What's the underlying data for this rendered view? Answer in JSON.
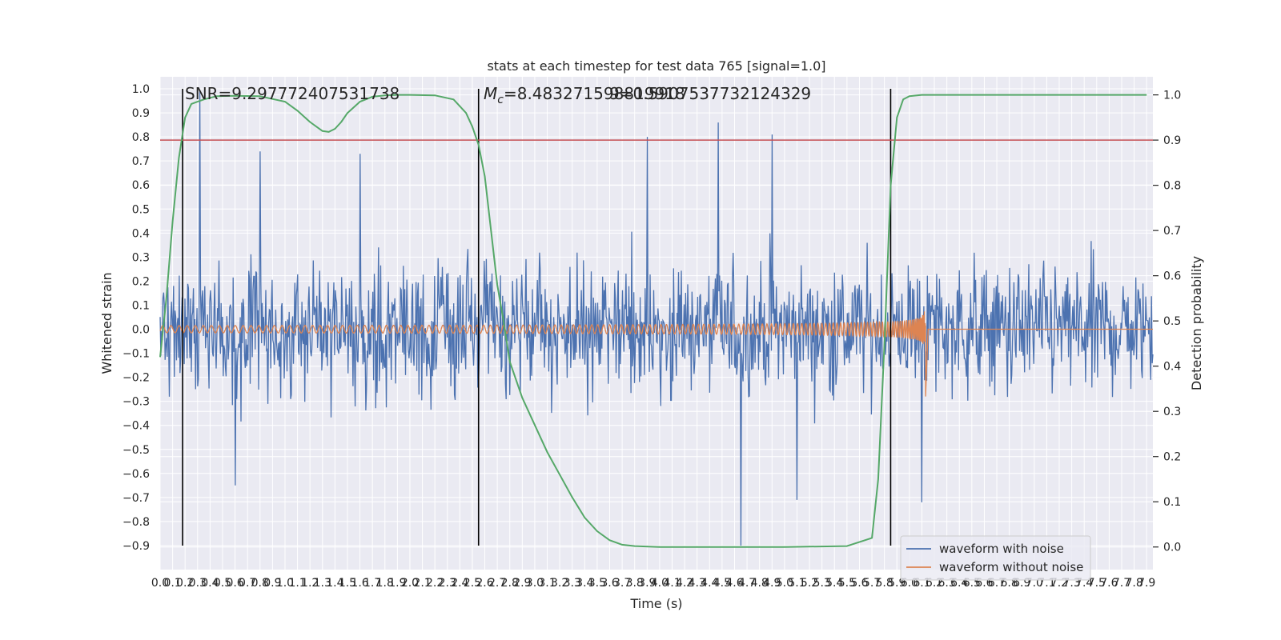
{
  "chart_data": {
    "type": "line",
    "title": "stats at each timestep for test data 765 [signal=1.0]",
    "xlabel": "Time (s)",
    "ylabel": "Whitened strain",
    "y2label": "Detection probability",
    "xlim": [
      0.0,
      7.95
    ],
    "ylim": [
      -1.0,
      1.05
    ],
    "y2lim": [
      -0.05,
      1.04
    ],
    "x_ticks": [
      "0.0",
      "0.1",
      "0.2",
      "0.3",
      "0.4",
      "0.5",
      "0.6",
      "0.7",
      "0.8",
      "0.9",
      "1.0",
      "1.1",
      "1.2",
      "1.3",
      "1.4",
      "1.5",
      "1.6",
      "1.7",
      "1.8",
      "1.9",
      "2.0",
      "2.1",
      "2.2",
      "2.3",
      "2.4",
      "2.5",
      "2.6",
      "2.7",
      "2.8",
      "2.9",
      "3.0",
      "3.1",
      "3.2",
      "3.3",
      "3.4",
      "3.5",
      "3.6",
      "3.7",
      "3.8",
      "3.9",
      "4.0",
      "4.1",
      "4.2",
      "4.3",
      "4.4",
      "4.5",
      "4.6",
      "4.7",
      "4.8",
      "4.9",
      "5.0",
      "5.1",
      "5.2",
      "5.3",
      "5.4",
      "5.5",
      "5.6",
      "5.7",
      "5.8",
      "5.9",
      "6.0",
      "6.1",
      "6.2",
      "6.3",
      "6.4",
      "6.5",
      "6.6",
      "6.7",
      "6.8",
      "6.9",
      "7.0",
      "7.1",
      "7.2",
      "7.3",
      "7.4",
      "7.5",
      "7.6",
      "7.7",
      "7.8",
      "7.9"
    ],
    "y_ticks": [
      "1.0",
      "0.9",
      "0.8",
      "0.7",
      "0.6",
      "0.5",
      "0.4",
      "0.3",
      "0.2",
      "0.1",
      "0.0",
      "−0.1",
      "−0.2",
      "−0.3",
      "−0.4",
      "−0.5",
      "−0.6",
      "−0.7",
      "−0.8",
      "−0.9"
    ],
    "y2_ticks": [
      "1.0",
      "0.9",
      "0.8",
      "0.7",
      "0.6",
      "0.5",
      "0.4",
      "0.3",
      "0.2",
      "0.1",
      "0.0"
    ],
    "grid": true,
    "legend_position": "lower-right",
    "annotations": [
      {
        "text": "SNR=9.297772407531738"
      },
      {
        "text_prefix": "M",
        "text_sub": "c",
        "text_suffix": "=8.483271598819918"
      },
      {
        "text": "9=0.5907537732124329"
      }
    ],
    "vertical_markers": [
      0.18,
      2.55,
      5.85
    ],
    "threshold_line": {
      "value": 0.9,
      "axis": "right",
      "color": "#c44e52"
    },
    "series": [
      {
        "name": "waveform with noise",
        "color": "#4c72b0",
        "noise_band_upper": 0.25,
        "noise_band_lower": -0.25,
        "peaks": [
          [
            0.32,
            0.99
          ],
          [
            4.47,
            0.86
          ],
          [
            3.9,
            0.8
          ],
          [
            4.9,
            0.81
          ],
          [
            0.8,
            0.74
          ],
          [
            1.6,
            0.73
          ],
          [
            4.65,
            -0.9
          ],
          [
            5.1,
            -0.71
          ],
          [
            6.1,
            -0.72
          ],
          [
            0.6,
            -0.65
          ]
        ]
      },
      {
        "name": "waveform without noise",
        "color": "#dd8452",
        "start_time": 0.0,
        "merger_time": 6.13,
        "start_amplitude": 0.015,
        "peak_amplitude": 0.21,
        "min_at_merger": -0.28
      },
      {
        "name": "Detection probability",
        "axis": "right",
        "color": "#55a868",
        "x": [
          0.0,
          0.05,
          0.1,
          0.15,
          0.2,
          0.25,
          0.3,
          0.35,
          0.45,
          0.6,
          0.8,
          1.0,
          1.1,
          1.2,
          1.3,
          1.35,
          1.4,
          1.45,
          1.5,
          1.6,
          1.7,
          1.8,
          1.9,
          2.0,
          2.2,
          2.35,
          2.45,
          2.5,
          2.55,
          2.6,
          2.65,
          2.7,
          2.75,
          2.8,
          2.9,
          3.0,
          3.1,
          3.2,
          3.3,
          3.4,
          3.5,
          3.6,
          3.7,
          3.8,
          4.0,
          4.5,
          5.0,
          5.5,
          5.7,
          5.75,
          5.8,
          5.85,
          5.9,
          5.95,
          6.0,
          6.1,
          6.5,
          7.0,
          7.5,
          7.9
        ],
        "y": [
          0.42,
          0.55,
          0.72,
          0.86,
          0.95,
          0.98,
          0.985,
          0.99,
          0.997,
          0.998,
          0.997,
          0.985,
          0.965,
          0.94,
          0.92,
          0.918,
          0.925,
          0.94,
          0.96,
          0.985,
          0.996,
          0.999,
          1.0,
          1.0,
          0.999,
          0.99,
          0.96,
          0.93,
          0.89,
          0.82,
          0.7,
          0.58,
          0.5,
          0.41,
          0.33,
          0.27,
          0.21,
          0.16,
          0.11,
          0.065,
          0.035,
          0.015,
          0.005,
          0.002,
          0.0,
          0.0,
          0.0,
          0.002,
          0.02,
          0.15,
          0.45,
          0.8,
          0.95,
          0.99,
          0.997,
          1.0,
          1.0,
          1.0,
          1.0,
          1.0
        ]
      }
    ]
  }
}
